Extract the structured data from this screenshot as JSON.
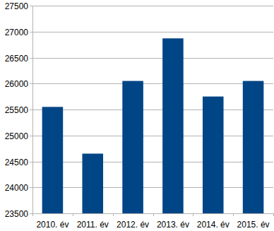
{
  "chart_data": {
    "type": "bar",
    "categories": [
      "2010. év",
      "2011. év",
      "2012. év",
      "2013. év",
      "2014. év",
      "2015. év"
    ],
    "values": [
      25550,
      24650,
      26050,
      26870,
      25750,
      26050
    ],
    "color": "#004586",
    "ylim": [
      23500,
      27500
    ],
    "yticks": [
      23500,
      24000,
      24500,
      25000,
      25500,
      26000,
      26500,
      27000,
      27500
    ],
    "grid": true
  }
}
